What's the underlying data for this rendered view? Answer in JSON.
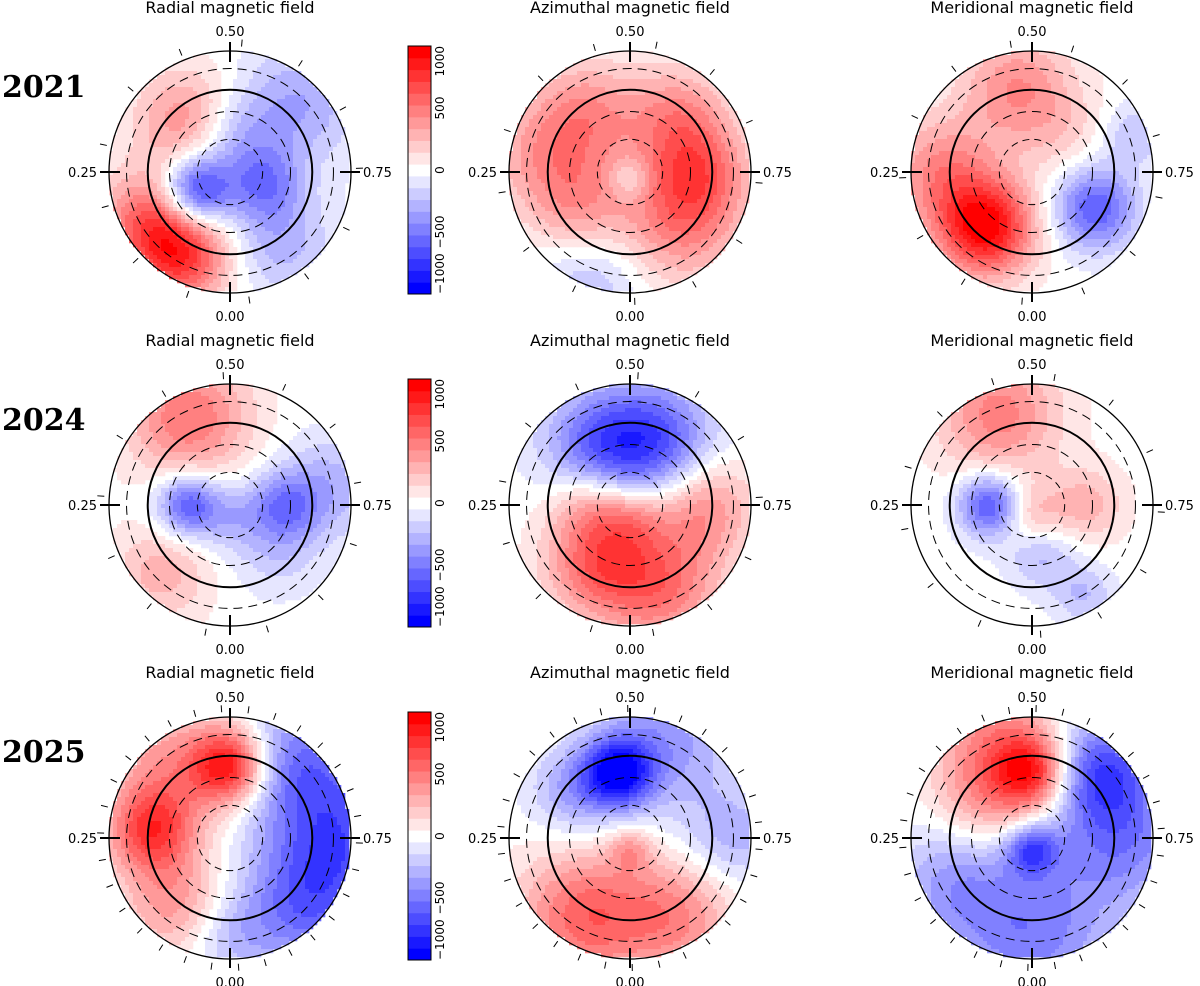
{
  "figure": {
    "years": [
      "2021",
      "2024",
      "2025"
    ],
    "component_titles": [
      "Radial magnetic field",
      "Azimuthal magnetic field",
      "Meridional magnetic field"
    ],
    "phase_labels": {
      "top": "0.50",
      "left": "0.25",
      "right": "0.75",
      "bottom": "0.00"
    },
    "colorbar": {
      "ticks": [
        "1000",
        "500",
        "0",
        "−500",
        "−1000"
      ],
      "min": -1000,
      "max": 1000,
      "steps": [
        -1000,
        -900,
        -800,
        -700,
        -600,
        -500,
        -400,
        -300,
        -200,
        -100,
        0,
        100,
        200,
        300,
        400,
        500,
        600,
        700,
        800,
        900,
        1000
      ]
    },
    "colors": {
      "positive": "#ff0000",
      "negative": "#0000ff",
      "neutral": "#ffffff"
    }
  },
  "maps": [
    {
      "year": "2021",
      "component": "radial",
      "features": [
        {
          "az": 300,
          "r": 0.78,
          "val": 550,
          "w": 0.28
        },
        {
          "az": 330,
          "r": 0.8,
          "val": 750,
          "w": 0.28
        },
        {
          "az": 220,
          "r": 0.55,
          "val": 450,
          "w": 0.3
        },
        {
          "az": 135,
          "r": 0.8,
          "val": -350,
          "w": 0.35
        },
        {
          "az": 35,
          "r": 0.72,
          "val": -300,
          "w": 0.3
        },
        {
          "az": 70,
          "r": 0.3,
          "val": -450,
          "w": 0.22
        },
        {
          "az": 175,
          "r": 0.3,
          "val": -300,
          "w": 0.25
        },
        {
          "az": 300,
          "r": 0.32,
          "val": -850,
          "w": 0.2
        }
      ]
    },
    {
      "year": "2021",
      "component": "azimuthal",
      "features": [
        {
          "az": 45,
          "r": 0.6,
          "val": 450,
          "w": 0.35
        },
        {
          "az": 90,
          "r": 0.55,
          "val": 500,
          "w": 0.3
        },
        {
          "az": 140,
          "r": 0.6,
          "val": 400,
          "w": 0.3
        },
        {
          "az": 220,
          "r": 0.6,
          "val": 450,
          "w": 0.32
        },
        {
          "az": 300,
          "r": 0.5,
          "val": 400,
          "w": 0.3
        },
        {
          "az": 260,
          "r": 0.82,
          "val": 250,
          "w": 0.3
        },
        {
          "az": 340,
          "r": 0.95,
          "val": -250,
          "w": 0.3
        },
        {
          "az": 0,
          "r": 0.05,
          "val": -250,
          "w": 0.12
        }
      ]
    },
    {
      "year": "2021",
      "component": "meridional",
      "features": [
        {
          "az": 320,
          "r": 0.6,
          "val": 1000,
          "w": 0.28
        },
        {
          "az": 270,
          "r": 0.75,
          "val": 450,
          "w": 0.32
        },
        {
          "az": 190,
          "r": 0.7,
          "val": 450,
          "w": 0.32
        },
        {
          "az": 60,
          "r": 0.6,
          "val": -650,
          "w": 0.24
        },
        {
          "az": 110,
          "r": 0.9,
          "val": -250,
          "w": 0.18
        },
        {
          "az": 140,
          "r": 0.4,
          "val": 150,
          "w": 0.25
        }
      ]
    },
    {
      "year": "2024",
      "component": "radial",
      "features": [
        {
          "az": 205,
          "r": 0.8,
          "val": 550,
          "w": 0.35
        },
        {
          "az": 315,
          "r": 0.8,
          "val": 300,
          "w": 0.28
        },
        {
          "az": 270,
          "r": 0.35,
          "val": -650,
          "w": 0.18
        },
        {
          "az": 90,
          "r": 0.45,
          "val": -450,
          "w": 0.2
        },
        {
          "az": 100,
          "r": 0.85,
          "val": -300,
          "w": 0.3
        },
        {
          "az": 0,
          "r": 0.1,
          "val": -250,
          "w": 0.2
        },
        {
          "az": 45,
          "r": 0.55,
          "val": -200,
          "w": 0.25
        }
      ]
    },
    {
      "year": "2024",
      "component": "azimuthal",
      "features": [
        {
          "az": 160,
          "r": 0.55,
          "val": -700,
          "w": 0.35
        },
        {
          "az": 210,
          "r": 0.6,
          "val": -450,
          "w": 0.32
        },
        {
          "az": 20,
          "r": 0.7,
          "val": 550,
          "w": 0.35
        },
        {
          "az": 330,
          "r": 0.55,
          "val": 550,
          "w": 0.3
        },
        {
          "az": 90,
          "r": 0.6,
          "val": 450,
          "w": 0.3
        },
        {
          "az": 0,
          "r": 0.1,
          "val": 300,
          "w": 0.2
        },
        {
          "az": 270,
          "r": 0.35,
          "val": 300,
          "w": 0.22
        }
      ]
    },
    {
      "year": "2024",
      "component": "meridional",
      "features": [
        {
          "az": 200,
          "r": 0.8,
          "val": 500,
          "w": 0.35
        },
        {
          "az": 270,
          "r": 0.35,
          "val": -700,
          "w": 0.18
        },
        {
          "az": 90,
          "r": 0.45,
          "val": 300,
          "w": 0.22
        },
        {
          "az": 10,
          "r": 0.4,
          "val": -300,
          "w": 0.2
        },
        {
          "az": 30,
          "r": 0.85,
          "val": -250,
          "w": 0.18
        },
        {
          "az": 0,
          "r": 0.1,
          "val": 300,
          "w": 0.18
        }
      ]
    },
    {
      "year": "2025",
      "component": "radial",
      "features": [
        {
          "az": 180,
          "r": 0.6,
          "val": 900,
          "w": 0.22
        },
        {
          "az": 265,
          "r": 0.65,
          "val": 700,
          "w": 0.25
        },
        {
          "az": 220,
          "r": 0.75,
          "val": 400,
          "w": 0.35
        },
        {
          "az": 320,
          "r": 0.7,
          "val": 400,
          "w": 0.3
        },
        {
          "az": 90,
          "r": 0.9,
          "val": -650,
          "w": 0.45
        },
        {
          "az": 45,
          "r": 0.85,
          "val": -450,
          "w": 0.35
        },
        {
          "az": 140,
          "r": 0.85,
          "val": -450,
          "w": 0.35
        },
        {
          "az": 0,
          "r": 0.8,
          "val": -250,
          "w": 0.25
        }
      ]
    },
    {
      "year": "2025",
      "component": "azimuthal",
      "features": [
        {
          "az": 190,
          "r": 0.55,
          "val": -900,
          "w": 0.2
        },
        {
          "az": 160,
          "r": 0.85,
          "val": -400,
          "w": 0.4
        },
        {
          "az": 330,
          "r": 0.75,
          "val": 600,
          "w": 0.38
        },
        {
          "az": 30,
          "r": 0.75,
          "val": 450,
          "w": 0.35
        },
        {
          "az": 90,
          "r": 0.85,
          "val": -300,
          "w": 0.3
        },
        {
          "az": 230,
          "r": 0.6,
          "val": -350,
          "w": 0.25
        },
        {
          "az": 0,
          "r": 0.1,
          "val": 300,
          "w": 0.12
        }
      ]
    },
    {
      "year": "2025",
      "component": "meridional",
      "features": [
        {
          "az": 180,
          "r": 0.55,
          "val": 800,
          "w": 0.22
        },
        {
          "az": 230,
          "r": 0.5,
          "val": 350,
          "w": 0.3
        },
        {
          "az": 0,
          "r": 0.8,
          "val": -500,
          "w": 0.45
        },
        {
          "az": 90,
          "r": 0.75,
          "val": -500,
          "w": 0.4
        },
        {
          "az": 135,
          "r": 0.8,
          "val": -650,
          "w": 0.3
        },
        {
          "az": 300,
          "r": 0.75,
          "val": -350,
          "w": 0.35
        },
        {
          "az": 0,
          "r": 0.1,
          "val": -600,
          "w": 0.15
        },
        {
          "az": 200,
          "r": 0.9,
          "val": 400,
          "w": 0.35
        }
      ]
    }
  ]
}
